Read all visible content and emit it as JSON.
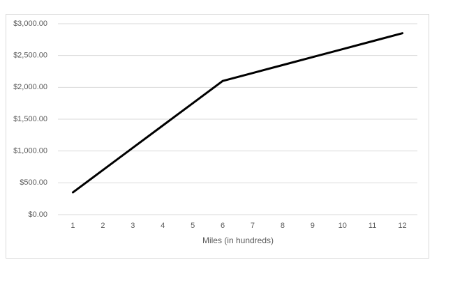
{
  "chart_data": {
    "type": "line",
    "x_label": "Miles (in hundreds)",
    "categories": [
      "1",
      "2",
      "3",
      "4",
      "5",
      "6",
      "7",
      "8",
      "9",
      "10",
      "11",
      "12"
    ],
    "series": [
      {
        "color": "#000000",
        "values": [
          350,
          700,
          1050,
          1400,
          1750,
          2100,
          2225,
          2350,
          2475,
          2600,
          2725,
          2850
        ]
      }
    ],
    "ylim": [
      0,
      3000
    ],
    "yticks": [
      {
        "value": 0,
        "label": "$0.00"
      },
      {
        "value": 500,
        "label": "$500.00"
      },
      {
        "value": 1000,
        "label": "$1,000.00"
      },
      {
        "value": 1500,
        "label": "$1,500.00"
      },
      {
        "value": 2000,
        "label": "$2,000.00"
      },
      {
        "value": 2500,
        "label": "$2,500.00"
      },
      {
        "value": 3000,
        "label": "$3,000.00"
      }
    ],
    "grid": true
  }
}
